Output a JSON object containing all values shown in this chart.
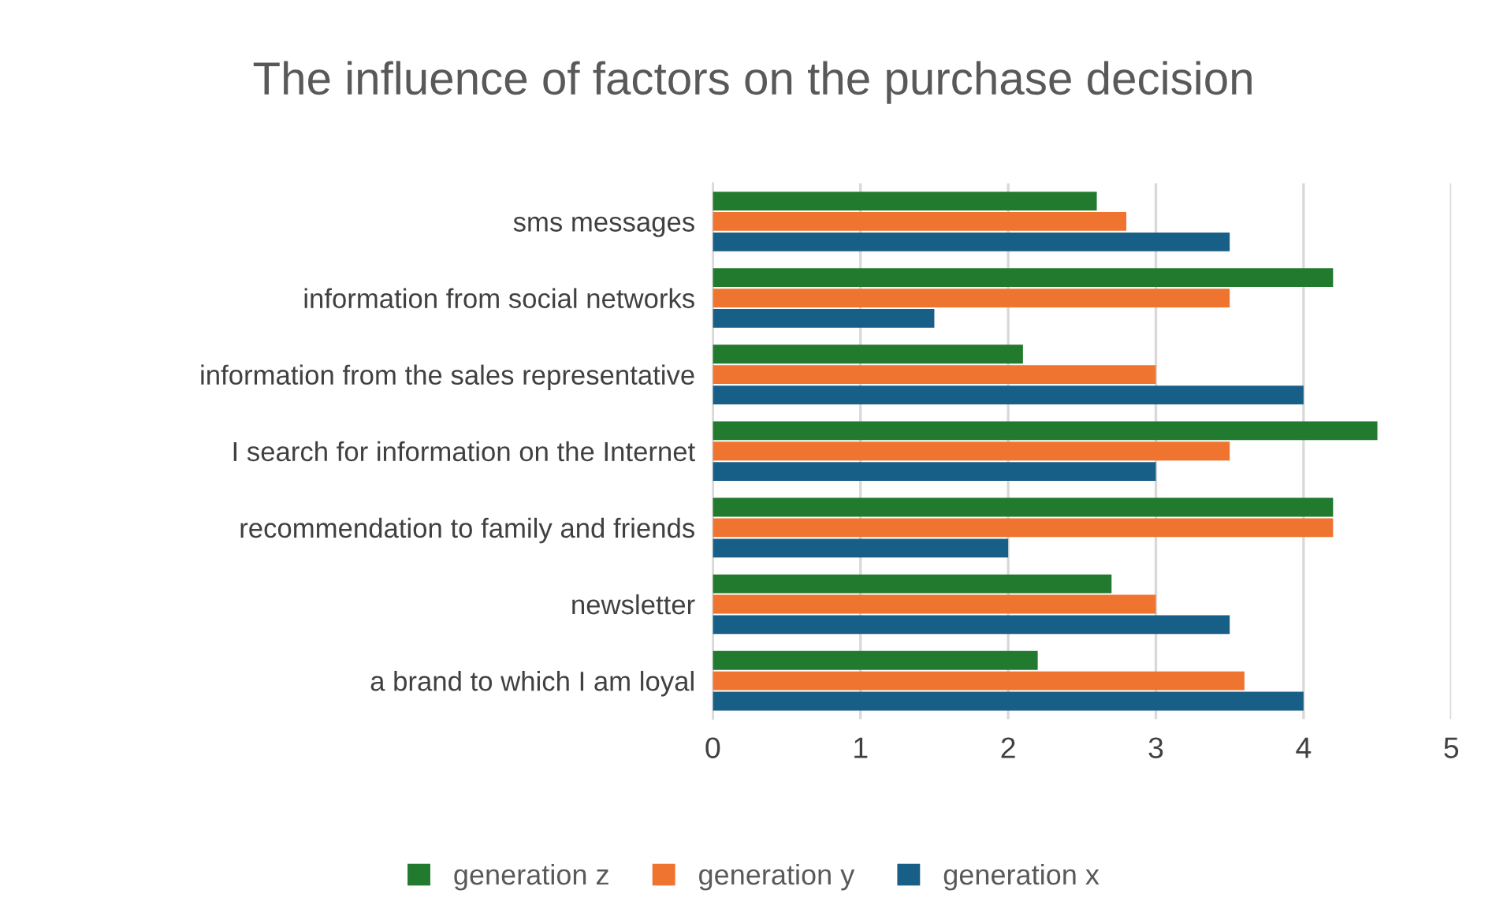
{
  "chart_data": {
    "type": "bar",
    "orientation": "horizontal",
    "title": "The influence of factors on the purchase decision",
    "categories": [
      "sms messages",
      "information from social networks",
      "information from the sales representative",
      "I search for information on the Internet",
      "recommendation to family and friends",
      "newsletter",
      "a brand to which I am loyal"
    ],
    "series": [
      {
        "name": "generation z",
        "color": "#217a2e",
        "values": [
          2.6,
          4.2,
          2.1,
          4.5,
          4.2,
          2.7,
          2.2
        ]
      },
      {
        "name": "generation y",
        "color": "#ef7430",
        "values": [
          2.8,
          3.5,
          3.0,
          3.5,
          4.2,
          3.0,
          3.6
        ]
      },
      {
        "name": "generation x",
        "color": "#185f87",
        "values": [
          3.5,
          1.5,
          4.0,
          3.0,
          2.0,
          3.5,
          4.0
        ]
      }
    ],
    "xlim": [
      0,
      5
    ],
    "xticks": [
      0,
      1,
      2,
      3,
      4,
      5
    ],
    "grid": "x",
    "legend": "bottom"
  }
}
